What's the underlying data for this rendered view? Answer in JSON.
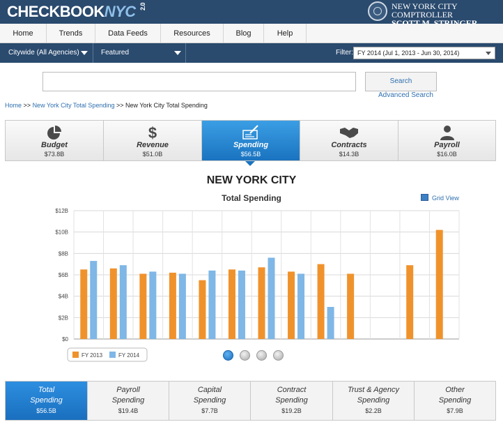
{
  "header": {
    "logo_main": "CHECKBOOK",
    "logo_nyc": "NYC",
    "logo_version": "2.0",
    "comptroller_title": "NEW YORK CITY COMPTROLLER",
    "comptroller_name": "SCOTT M. STRINGER",
    "seal_icon": "nyc-seal-icon"
  },
  "nav": {
    "items": [
      "Home",
      "Trends",
      "Data Feeds",
      "Resources",
      "Blog",
      "Help"
    ]
  },
  "filters": {
    "agency": "Citywide (All Agencies)",
    "featured": "Featured",
    "filter_label": "Filter:",
    "fiscal_year": "FY 2014 (Jul 1, 2013 - Jun 30, 2014)"
  },
  "search": {
    "placeholder": "",
    "button": "Search",
    "advanced": "Advanced Search"
  },
  "breadcrumb": {
    "home": "Home",
    "sep": ">>",
    "link": "New York City Total Spending",
    "current": "New York City Total Spending"
  },
  "domains": [
    {
      "label": "Budget",
      "amount": "$73.8B",
      "icon": "pie-chart-icon"
    },
    {
      "label": "Revenue",
      "amount": "$51.0B",
      "icon": "dollar-sign-icon"
    },
    {
      "label": "Spending",
      "amount": "$56.5B",
      "icon": "check-writing-icon"
    },
    {
      "label": "Contracts",
      "amount": "$14.3B",
      "icon": "handshake-icon"
    },
    {
      "label": "Payroll",
      "amount": "$16.0B",
      "icon": "person-icon"
    }
  ],
  "chart_header": {
    "title": "NEW YORK CITY",
    "subtitle": "Total Spending",
    "grid_view": "Grid View"
  },
  "chart_data": {
    "type": "bar",
    "categories": [
      "",
      "",
      "",
      "",
      "",
      "",
      "",
      "",
      "",
      "",
      "",
      "",
      ""
    ],
    "series": [
      {
        "name": "FY 2013",
        "values": [
          6.5,
          6.6,
          6.1,
          6.2,
          5.5,
          6.5,
          6.7,
          6.3,
          7.0,
          6.1,
          null,
          6.9,
          10.2
        ]
      },
      {
        "name": "FY 2014",
        "values": [
          7.3,
          6.9,
          6.3,
          6.1,
          6.4,
          6.4,
          7.6,
          6.1,
          3.0,
          null,
          null,
          null,
          null
        ]
      }
    ],
    "yticks": [
      "$0",
      "$2B",
      "$4B",
      "$6B",
      "$8B",
      "$10B",
      "$12B"
    ],
    "ylim": [
      0,
      12
    ],
    "colors": {
      "FY 2013": "#f0922c",
      "FY 2014": "#7fb7e6"
    },
    "legend_position": "bottom-left",
    "grid": true
  },
  "pager": {
    "count": 4,
    "active": 0
  },
  "spending_tabs": [
    {
      "line1": "Total",
      "line2": "Spending",
      "amount": "$56.5B"
    },
    {
      "line1": "Payroll",
      "line2": "Spending",
      "amount": "$19.4B"
    },
    {
      "line1": "Capital",
      "line2": "Spending",
      "amount": "$7.7B"
    },
    {
      "line1": "Contract",
      "line2": "Spending",
      "amount": "$19.2B"
    },
    {
      "line1": "Trust & Agency",
      "line2": "Spending",
      "amount": "$2.2B"
    },
    {
      "line1": "Other",
      "line2": "Spending",
      "amount": "$7.9B"
    }
  ]
}
